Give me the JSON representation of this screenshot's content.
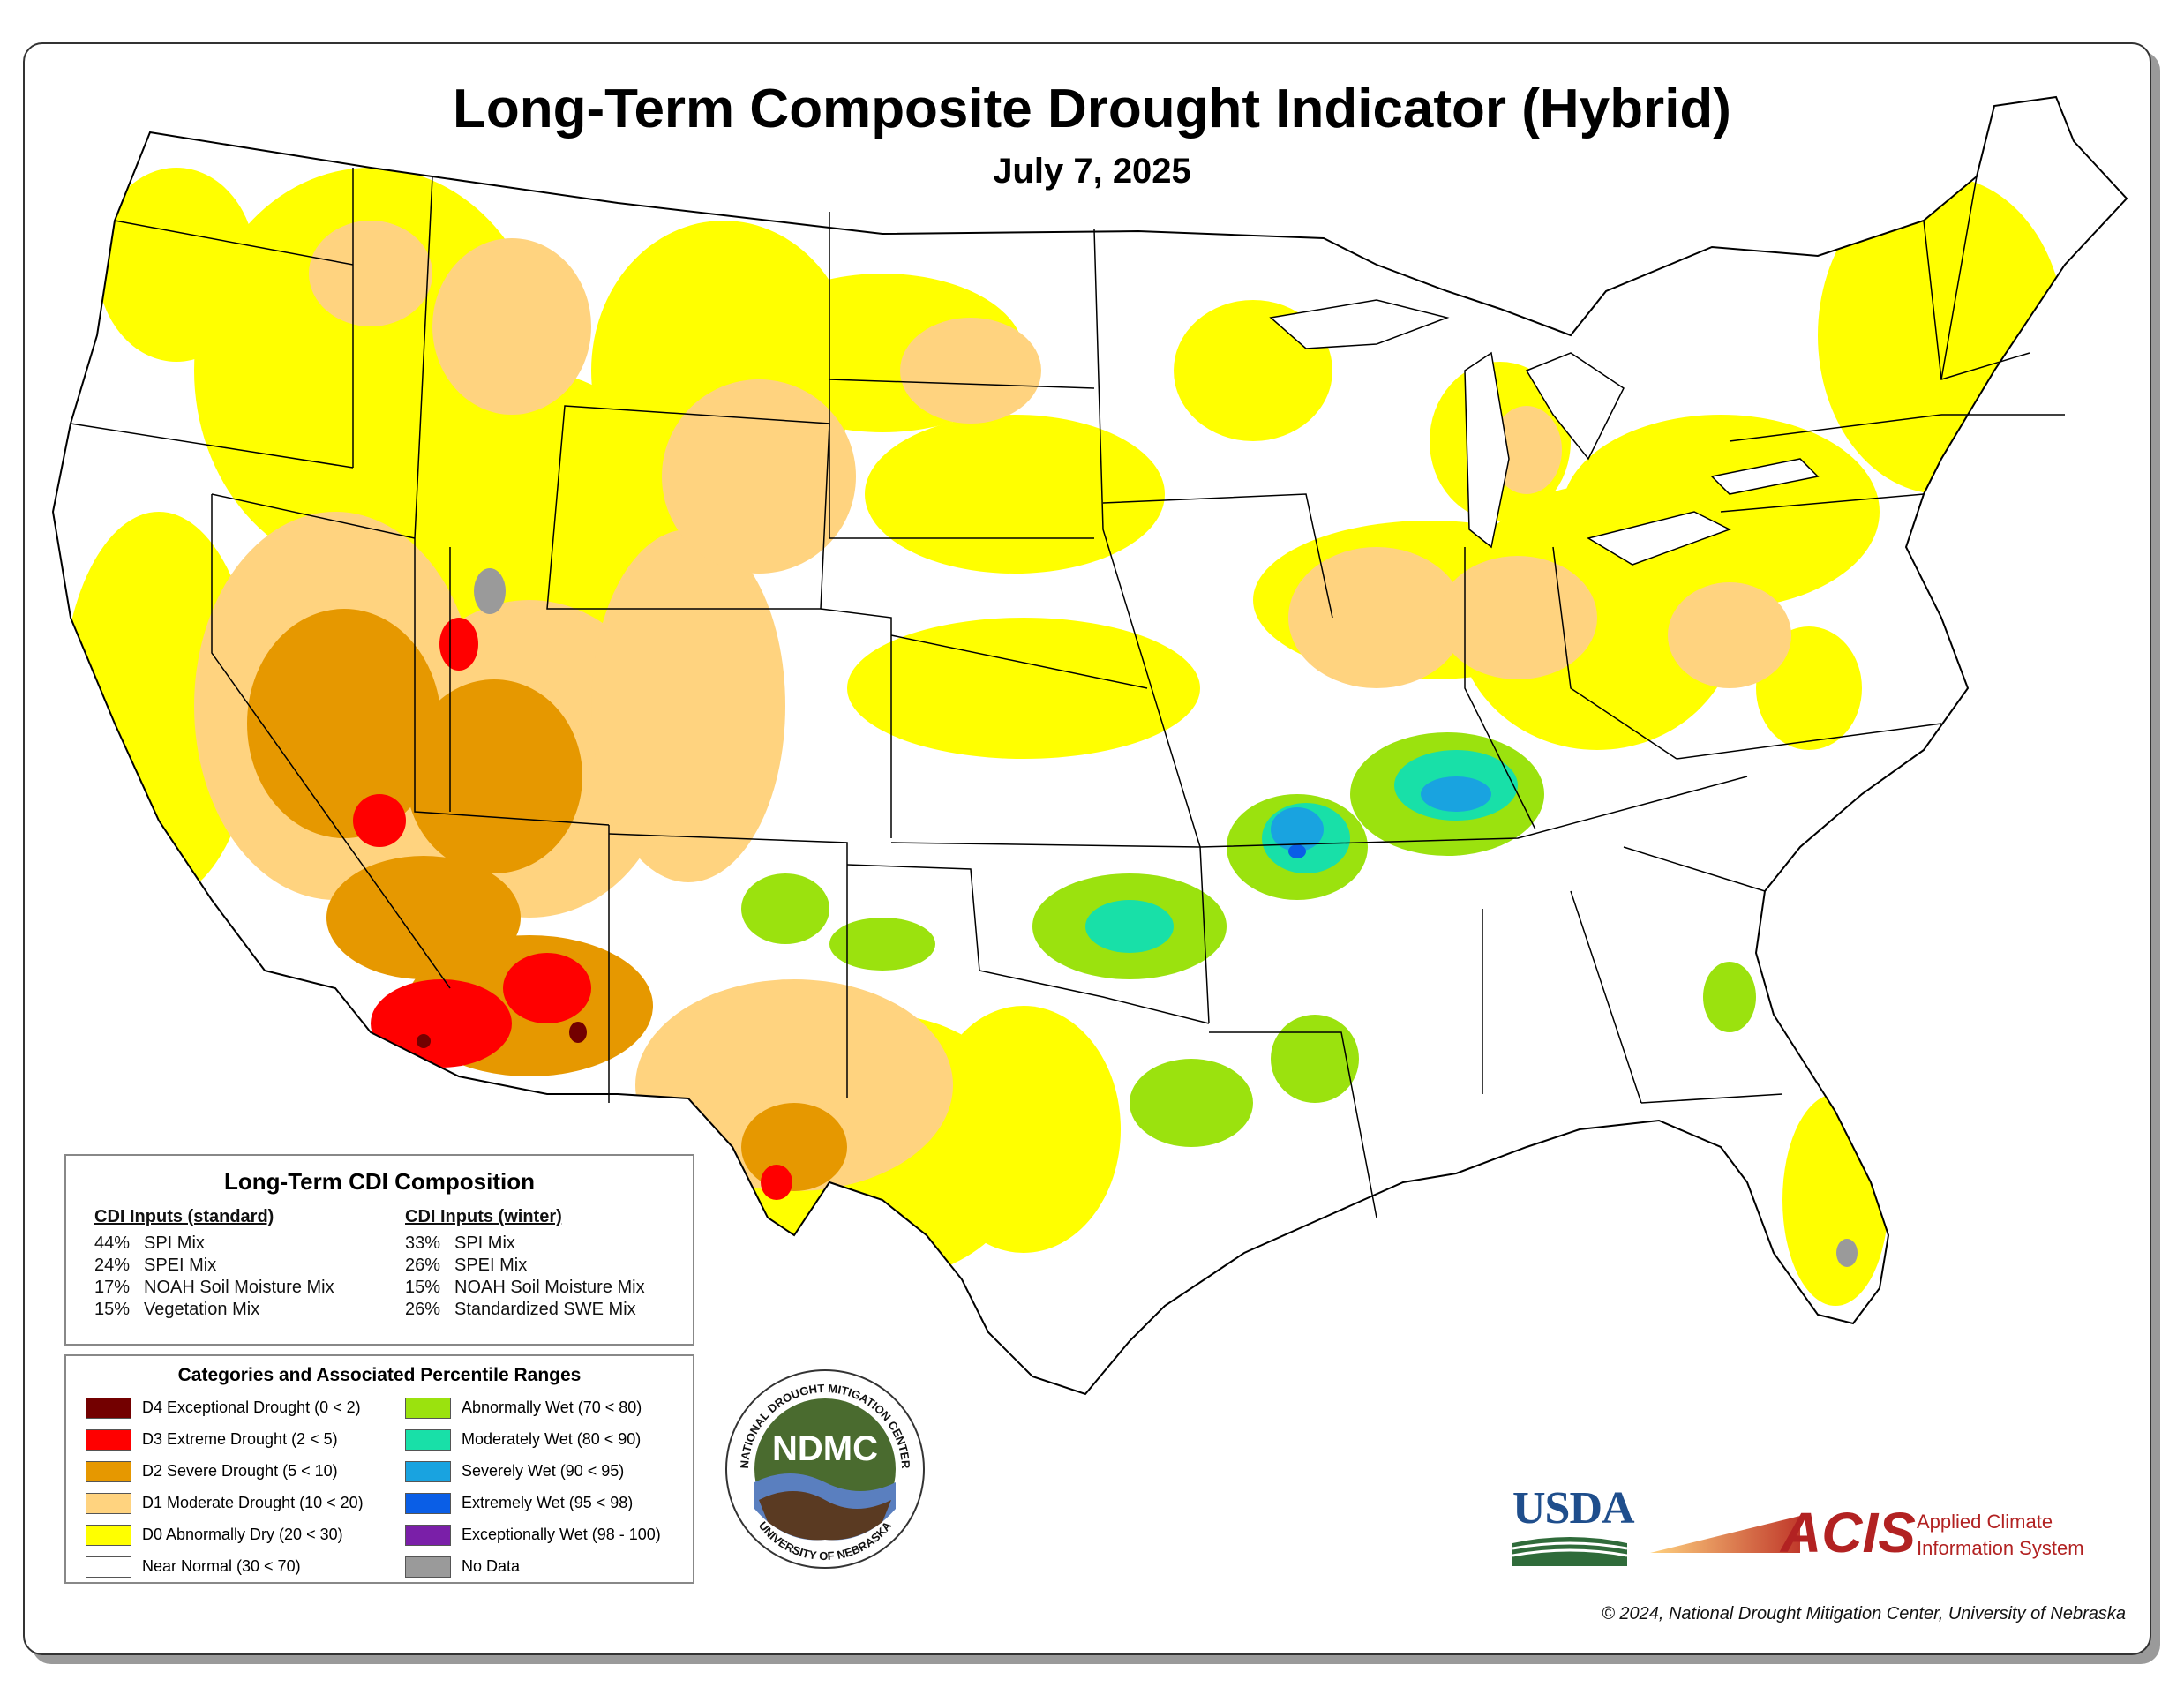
{
  "title": "Long-Term Composite Drought Indicator (Hybrid)",
  "date": "July 7, 2025",
  "composition": {
    "heading": "Long-Term CDI Composition",
    "standard": {
      "heading": "CDI Inputs (standard)",
      "rows": [
        {
          "pct": "44%",
          "label": "SPI Mix"
        },
        {
          "pct": "24%",
          "label": "SPEI Mix"
        },
        {
          "pct": "17%",
          "label": "NOAH Soil Moisture Mix"
        },
        {
          "pct": "15%",
          "label": "Vegetation Mix"
        }
      ]
    },
    "winter": {
      "heading": "CDI Inputs (winter)",
      "rows": [
        {
          "pct": "33%",
          "label": "SPI Mix"
        },
        {
          "pct": "26%",
          "label": "SPEI Mix"
        },
        {
          "pct": "15%",
          "label": "NOAH Soil Moisture Mix"
        },
        {
          "pct": "26%",
          "label": "Standardized SWE Mix"
        }
      ]
    }
  },
  "categories": {
    "heading": "Categories and Associated Percentile Ranges",
    "left": [
      {
        "label": "D4 Exceptional Drought (0 < 2)",
        "color": "#730000"
      },
      {
        "label": "D3 Extreme Drought (2 < 5)",
        "color": "#ff0000"
      },
      {
        "label": "D2 Severe Drought (5 < 10)",
        "color": "#e69800"
      },
      {
        "label": "D1 Moderate Drought (10 < 20)",
        "color": "#ffd37f"
      },
      {
        "label": "D0 Abnormally Dry (20 < 30)",
        "color": "#ffff00"
      },
      {
        "label": "Near Normal (30 < 70)",
        "color": "#ffffff"
      }
    ],
    "right": [
      {
        "label": "Abnormally Wet (70 < 80)",
        "color": "#9be20e"
      },
      {
        "label": "Moderately Wet (80 < 90)",
        "color": "#18e0a8"
      },
      {
        "label": "Severely Wet (90 < 95)",
        "color": "#19a3e0"
      },
      {
        "label": "Extremely Wet (95 < 98)",
        "color": "#0a5ee6"
      },
      {
        "label": "Exceptionally Wet (98 - 100)",
        "color": "#7a1fa8"
      },
      {
        "label": "No Data",
        "color": "#9a9a9a"
      }
    ]
  },
  "logos": {
    "ndmc_ring_top": "NATIONAL DROUGHT MITIGATION CENTER",
    "ndmc_ring_bottom": "UNIVERSITY OF NEBRASKA",
    "ndmc": "NDMC",
    "usda": "USDA",
    "acis": "ACIS",
    "acis_line1": "Applied Climate",
    "acis_line2": "Information System"
  },
  "copyright": "© 2024, National Drought Mitigation Center, University of Nebraska"
}
